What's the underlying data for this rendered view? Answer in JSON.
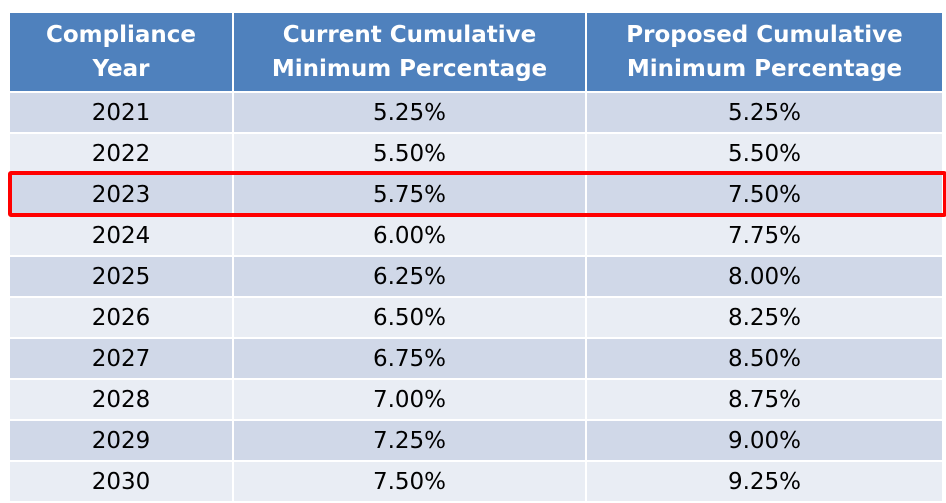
{
  "table": {
    "headers": [
      [
        "Compliance",
        "Year"
      ],
      [
        "Current Cumulative",
        "Minimum Percentage"
      ],
      [
        "Proposed Cumulative",
        "Minimum Percentage"
      ]
    ],
    "rows": [
      [
        "2021",
        "5.25%",
        "5.25%"
      ],
      [
        "2022",
        "5.50%",
        "5.50%"
      ],
      [
        "2023",
        "5.75%",
        "7.50%"
      ],
      [
        "2024",
        "6.00%",
        "7.75%"
      ],
      [
        "2025",
        "6.25%",
        "8.00%"
      ],
      [
        "2026",
        "6.50%",
        "8.25%"
      ],
      [
        "2027",
        "6.75%",
        "8.50%"
      ],
      [
        "2028",
        "7.00%",
        "8.75%"
      ],
      [
        "2029",
        "7.25%",
        "9.00%"
      ],
      [
        "2030",
        "7.50%",
        "9.25%"
      ]
    ],
    "highlighted_row": "2023"
  },
  "colors": {
    "header_bg": "#4f81bd",
    "row_dark": "#d0d8e8",
    "row_light": "#e9edf4",
    "highlight": "#ff0000"
  }
}
